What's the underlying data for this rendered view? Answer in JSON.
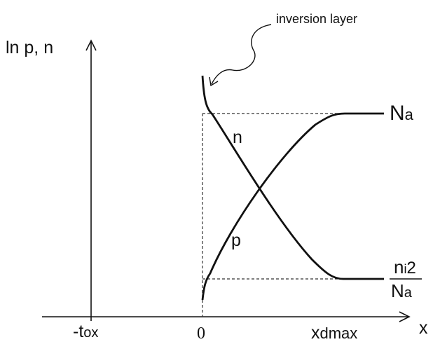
{
  "labels": {
    "annotation": "inversion layer",
    "y_axis": "ln p, n",
    "x_axis": "x",
    "curve_n": "n",
    "curve_p": "p",
    "na_main": "N",
    "na_sub": "a",
    "ni_main": "n",
    "ni_sub": "i",
    "ni_sup": "2",
    "den_main": "N",
    "den_sub": "a",
    "tox_main": "-t",
    "tox_sub": "ox",
    "zero": "0",
    "xd_main": "x",
    "xd_sub": "dmax"
  },
  "colors": {
    "ink": "#111111",
    "guide": "#333333"
  }
}
